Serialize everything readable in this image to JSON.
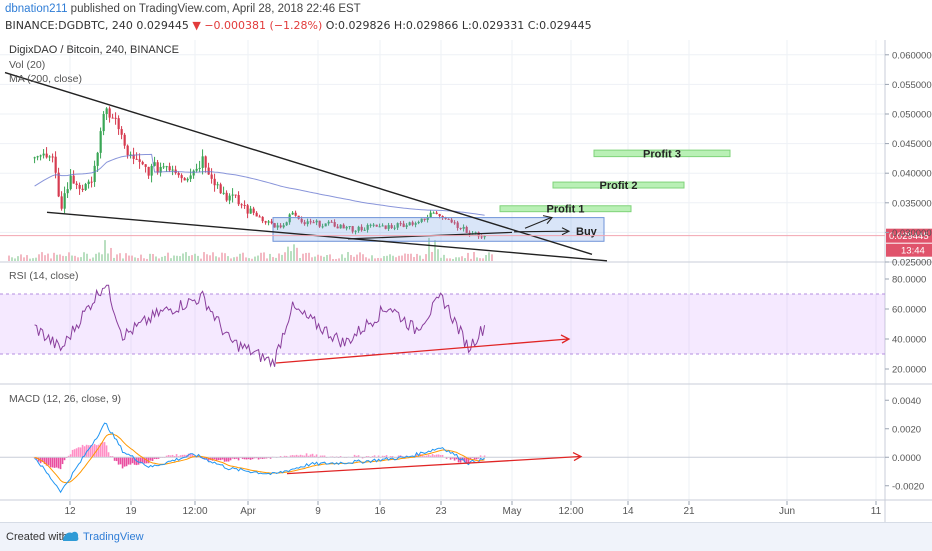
{
  "header": {
    "author": "dbnation211",
    "published_text": "published on TradingView.com, April 28, 2018 22:46 EST",
    "symbol_line": "BINANCE:DGDBTC, 240",
    "last_price": "0.029445",
    "change_text": "▼ −0.000381 (−1.28%)",
    "ohlc_text": "O:0.029826 H:0.029866 L:0.029331 C:0.029445"
  },
  "footer": {
    "created_with": "Created with",
    "brand": "TradingView"
  },
  "chart_data": [
    {
      "type": "candlestick",
      "panel": "price",
      "title": "DigixDAO / Bitcoin, 240, BINANCE",
      "indicators": [
        "Vol (20)",
        "MA (200, close)"
      ],
      "ylim": [
        0.025,
        0.0625
      ],
      "yticks": [
        "0.060000",
        "0.055000",
        "0.050000",
        "0.045000",
        "0.040000",
        "0.035000",
        "0.030000",
        "0.025000"
      ],
      "last_price_label": "0.029445",
      "countdown_label": "13:44",
      "price_path_approx": [
        {
          "date": "Mar 8",
          "close": 0.0435
        },
        {
          "date": "Mar 10",
          "close": 0.042
        },
        {
          "date": "Mar 11",
          "close": 0.0345
        },
        {
          "date": "Mar 12",
          "close": 0.039
        },
        {
          "date": "Mar 14",
          "close": 0.037
        },
        {
          "date": "Mar 15",
          "close": 0.043
        },
        {
          "date": "Mar 16",
          "close": 0.0505
        },
        {
          "date": "Mar 17",
          "close": 0.0495
        },
        {
          "date": "Mar 18",
          "close": 0.045
        },
        {
          "date": "Mar 19",
          "close": 0.042
        },
        {
          "date": "Mar 21",
          "close": 0.0405
        },
        {
          "date": "Mar 23",
          "close": 0.0415
        },
        {
          "date": "Mar 25",
          "close": 0.0395
        },
        {
          "date": "Mar 26",
          "close": 0.0405
        },
        {
          "date": "Mar 27",
          "close": 0.0425
        },
        {
          "date": "Mar 29",
          "close": 0.037
        },
        {
          "date": "Mar 31",
          "close": 0.035
        },
        {
          "date": "Apr 2",
          "close": 0.033
        },
        {
          "date": "Apr 4",
          "close": 0.0312
        },
        {
          "date": "Apr 5",
          "close": 0.0305
        },
        {
          "date": "Apr 6",
          "close": 0.0335
        },
        {
          "date": "Apr 7",
          "close": 0.0315
        },
        {
          "date": "Apr 9",
          "close": 0.0315
        },
        {
          "date": "Apr 11",
          "close": 0.0312
        },
        {
          "date": "Apr 13",
          "close": 0.0305
        },
        {
          "date": "Apr 15",
          "close": 0.031
        },
        {
          "date": "Apr 17",
          "close": 0.031
        },
        {
          "date": "Apr 19",
          "close": 0.0315
        },
        {
          "date": "Apr 21",
          "close": 0.032
        },
        {
          "date": "Apr 22",
          "close": 0.0335
        },
        {
          "date": "Apr 23",
          "close": 0.033
        },
        {
          "date": "Apr 25",
          "close": 0.031
        },
        {
          "date": "Apr 26",
          "close": 0.0298
        },
        {
          "date": "Apr 28",
          "close": 0.029445
        }
      ],
      "annotations": [
        {
          "type": "target_box",
          "label": "Profit 1",
          "low": 0.0335,
          "high": 0.0345
        },
        {
          "type": "target_box",
          "label": "Profit 2",
          "low": 0.0375,
          "high": 0.0385
        },
        {
          "type": "target_box",
          "label": "Profit 3",
          "low": 0.0428,
          "high": 0.0439
        },
        {
          "type": "arrow",
          "label": "Buy"
        },
        {
          "type": "range_box",
          "label": "",
          "low": 0.0285,
          "high": 0.0325
        },
        {
          "type": "trendline",
          "label": "descending resistance"
        },
        {
          "type": "trendline",
          "label": "descending support"
        }
      ]
    },
    {
      "type": "line",
      "panel": "rsi",
      "title": "RSI (14, close)",
      "ylim": [
        10,
        90
      ],
      "yticks": [
        "80.0000",
        "60.0000",
        "40.0000",
        "20.0000"
      ],
      "band": [
        30,
        70
      ],
      "values_approx": [
        {
          "date": "Mar 8",
          "value": 48
        },
        {
          "date": "Mar 11",
          "value": 33
        },
        {
          "date": "Mar 13",
          "value": 52
        },
        {
          "date": "Mar 16",
          "value": 78
        },
        {
          "date": "Mar 18",
          "value": 42
        },
        {
          "date": "Mar 22",
          "value": 57
        },
        {
          "date": "Mar 27",
          "value": 68
        },
        {
          "date": "Mar 30",
          "value": 39
        },
        {
          "date": "Apr 4",
          "value": 24
        },
        {
          "date": "Apr 6",
          "value": 61
        },
        {
          "date": "Apr 12",
          "value": 37
        },
        {
          "date": "Apr 17",
          "value": 62
        },
        {
          "date": "Apr 20",
          "value": 46
        },
        {
          "date": "Apr 23",
          "value": 68
        },
        {
          "date": "Apr 26",
          "value": 34
        },
        {
          "date": "Apr 28",
          "value": 50
        }
      ],
      "annotations": [
        {
          "type": "arrow",
          "label": "rising RSI lows"
        }
      ]
    },
    {
      "type": "line",
      "panel": "macd",
      "title": "MACD (12, 26, close, 9)",
      "ylim": [
        -0.003,
        0.005
      ],
      "yticks": [
        "0.0040",
        "0.0020",
        "0.0000",
        "-0.0020"
      ],
      "series": [
        {
          "name": "MACD",
          "color": "#2196f3"
        },
        {
          "name": "Signal",
          "color": "#ff9800"
        },
        {
          "name": "Histogram",
          "color": "#ff4fa8"
        }
      ],
      "macd_approx": [
        {
          "date": "Mar 8",
          "macd": 0.0
        },
        {
          "date": "Mar 11",
          "macd": -0.0024
        },
        {
          "date": "Mar 13",
          "macd": -0.0005
        },
        {
          "date": "Mar 16",
          "macd": 0.0024
        },
        {
          "date": "Mar 18",
          "macd": 0.0004
        },
        {
          "date": "Mar 21",
          "macd": -0.0007
        },
        {
          "date": "Mar 26",
          "macd": 0.0002
        },
        {
          "date": "Mar 30",
          "macd": -0.0008
        },
        {
          "date": "Apr 4",
          "macd": -0.0012
        },
        {
          "date": "Apr 8",
          "macd": -0.0005
        },
        {
          "date": "Apr 14",
          "macd": -0.0003
        },
        {
          "date": "Apr 19",
          "macd": 0.0
        },
        {
          "date": "Apr 23",
          "macd": 0.0007
        },
        {
          "date": "Apr 26",
          "macd": -0.0004
        },
        {
          "date": "Apr 28",
          "macd": -0.0001
        }
      ],
      "annotations": [
        {
          "type": "arrow",
          "label": "rising MACD lows"
        }
      ]
    }
  ],
  "x_axis": {
    "ticks": [
      "12",
      "19",
      "12:00",
      "Apr",
      "9",
      "16",
      "23",
      "May",
      "12:00",
      "14",
      "21",
      "Jun",
      "11"
    ]
  }
}
